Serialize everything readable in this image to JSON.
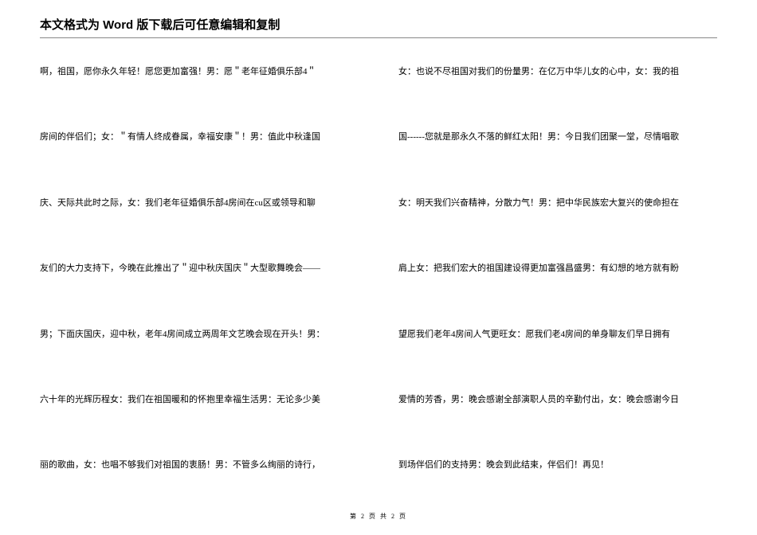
{
  "header": "本文格式为 Word 版下载后可任意编辑和复制",
  "columns": {
    "left": [
      "啊，祖国，愿你永久年轻！愿您更加富强！男：愿＂老年征婚俱乐部4＂",
      "房间的伴侣们；女：＂有情人终成眷属，幸福安康＂！男：值此中秋逢国",
      "庆、天际共此时之际，女：我们老年征婚俱乐部4房间在cu区或领导和聊",
      "友们的大力支持下，今晚在此推出了＂迎中秋庆国庆＂大型歌舞晚会——",
      "男；下面庆国庆，迎中秋，老年4房间成立两周年文艺晚会现在开头！男：",
      "六十年的光辉历程女：我们在祖国暖和的怀抱里幸福生活男：无论多少美",
      "丽的歌曲，女：也唱不够我们对祖国的衷肠！男：不管多么绚丽的诗行，"
    ],
    "right": [
      "女：也说不尽祖国对我们的份量男：在亿万中华儿女的心中，女：我的祖",
      "国------您就是那永久不落的鲜红太阳！男：今日我们团聚一堂，尽情唱歌",
      "女：明天我们兴奋精神，分散力气！男：把中华民族宏大复兴的使命担在",
      "肩上女：把我们宏大的祖国建设得更加富强昌盛男：有幻想的地方就有盼",
      "望愿我们老年4房间人气更旺女：愿我们老4房间的单身聊友们早日拥有",
      "爱情的芳香，男：晚会感谢全部演职人员的辛勤付出，女：晚会感谢今日",
      "到场伴侣们的支持男：晚会到此结束，伴侣们！再见！"
    ]
  },
  "footer": "第 2 页 共 2 页"
}
